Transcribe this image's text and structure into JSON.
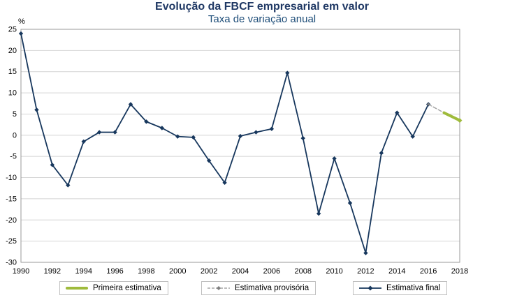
{
  "chart_data": {
    "type": "line",
    "title": "Evolução da FBCF empresarial em valor",
    "subtitle": "Taxa de variação anual",
    "ylabel": "%",
    "xlabel": "",
    "xlim": [
      1990,
      2018
    ],
    "ylim": [
      -30,
      25
    ],
    "yticks": [
      25,
      20,
      15,
      10,
      5,
      0,
      -5,
      -10,
      -15,
      -20,
      -25,
      -30
    ],
    "xticks": [
      1990,
      1992,
      1994,
      1996,
      1998,
      2000,
      2002,
      2004,
      2006,
      2008,
      2010,
      2012,
      2014,
      2016,
      2018
    ],
    "grid": true,
    "legend_position": "bottom",
    "colors": {
      "grid": "#D4D4D4",
      "plot_border": "#9A9A9A",
      "title": "#1F3864",
      "subtitle": "#1F4E79"
    },
    "series": [
      {
        "name": "Primeira estimativa",
        "color": "#9FBB3C",
        "width": 4,
        "dash": "",
        "markers": "last",
        "marker_size": 3.5,
        "x": [
          2017,
          2018
        ],
        "values": [
          5.3,
          3.5
        ]
      },
      {
        "name": "Estimativa provisória",
        "color": "#A6A6A6",
        "marker_color": "#7F7F7F",
        "width": 1.5,
        "dash": "5,3",
        "markers": "all",
        "marker_size": 2.2,
        "x": [
          2016,
          2017
        ],
        "values": [
          7.3,
          5.3
        ]
      },
      {
        "name": "Estimativa final",
        "color": "#17375D",
        "width": 1.8,
        "dash": "",
        "markers": "all",
        "marker_size": 3.2,
        "x": [
          1990,
          1991,
          1992,
          1993,
          1994,
          1995,
          1996,
          1997,
          1998,
          1999,
          2000,
          2001,
          2002,
          2003,
          2004,
          2005,
          2006,
          2007,
          2008,
          2009,
          2010,
          2011,
          2012,
          2013,
          2014,
          2015,
          2016
        ],
        "values": [
          24.0,
          6.0,
          -7.0,
          -11.8,
          -1.5,
          0.7,
          0.7,
          7.3,
          3.2,
          1.7,
          -0.3,
          -0.5,
          -6.0,
          -11.2,
          -0.2,
          0.7,
          1.5,
          14.7,
          -0.7,
          -18.5,
          -5.5,
          -16.0,
          -27.8,
          -4.2,
          5.3,
          -0.3,
          7.3
        ]
      }
    ]
  }
}
